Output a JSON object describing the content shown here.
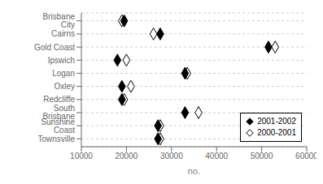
{
  "chart_data": {
    "type": "scatter",
    "orientation": "horizontal",
    "categories": [
      "Brisbane City",
      "Cairns",
      "Gold Coast",
      "Ipswich",
      "Logan",
      "Oxley",
      "Redcliffe",
      "South Brisbane",
      "Sunshine Coast",
      "Townsville"
    ],
    "series": [
      {
        "name": "2001-2002",
        "color": "#000000",
        "marker": "diamond",
        "values": [
          19500,
          27500,
          51500,
          18000,
          33000,
          19000,
          19000,
          33000,
          27000,
          27000
        ]
      },
      {
        "name": "2000-2001",
        "color": "#ffffff",
        "marker": "diamond",
        "values": [
          19000,
          26000,
          53000,
          20000,
          33500,
          21000,
          19500,
          36000,
          27500,
          27500
        ]
      }
    ],
    "xlabel": "no.",
    "xlim": [
      10000,
      60000
    ],
    "xticks": [
      10000,
      20000,
      30000,
      40000,
      50000,
      60000
    ],
    "grid": true,
    "legend": "lower right"
  }
}
